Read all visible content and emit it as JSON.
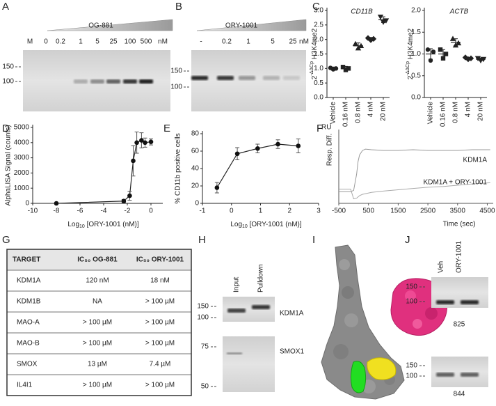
{
  "panels": [
    "A",
    "B",
    "C",
    "D",
    "E",
    "F",
    "G",
    "H",
    "I",
    "J"
  ],
  "gel_a": {
    "ladder": "M",
    "compound": "OG-881",
    "lanes": [
      "0",
      "0.2",
      "1",
      "5",
      "25",
      "100",
      "500"
    ],
    "unit": "nM",
    "markers": [
      "150",
      "100"
    ]
  },
  "gel_b": {
    "compound": "ORY-1001",
    "lanes": [
      "-",
      "0.2",
      "1",
      "5",
      "25"
    ],
    "unit": "nM",
    "markers": [
      "150",
      "100"
    ]
  },
  "chart_data": [
    {
      "type": "strip",
      "title": "CD11B",
      "ylabel": {
        "text": "2",
        "sup": "-ΔΔCp",
        "after": " H3K4me2"
      },
      "categories": [
        "Vehicle",
        "0.16 nM",
        "0.8 nM",
        "4 nM",
        "20 nM"
      ],
      "values": [
        [
          1.02,
          0.97,
          1.0
        ],
        [
          1.05,
          0.95,
          1.0
        ],
        [
          1.85,
          1.7,
          1.78
        ],
        [
          2.05,
          1.98,
          2.02
        ],
        [
          2.78,
          2.6,
          2.65
        ]
      ],
      "means": [
        1.0,
        1.0,
        1.78,
        2.02,
        2.68
      ],
      "errors": [
        0.05,
        0.07,
        0.1,
        0.05,
        0.1
      ],
      "ylim": [
        0,
        3
      ],
      "yticks": [
        {
          "value": 0,
          "label": "0.0"
        },
        {
          "value": 0.5,
          "label": "0.5"
        },
        {
          "value": 1,
          "label": "1.0"
        },
        {
          "value": 1.5,
          "label": "1.5"
        },
        {
          "value": 2,
          "label": "2.0"
        },
        {
          "value": 2.5,
          "label": "2.5"
        },
        {
          "value": 3,
          "label": "3.0"
        }
      ],
      "color": "#222222"
    },
    {
      "type": "strip",
      "title": "ACTB",
      "ylabel": {
        "text": "2",
        "sup": "-ΔΔCp",
        "after": " H3K4me2"
      },
      "categories": [
        "Vehicle",
        "0.16 nM",
        "0.8 nM",
        "4 nM",
        "20 nM"
      ],
      "values": [
        [
          1.1,
          0.85,
          1.05
        ],
        [
          1.1,
          0.9,
          1.0
        ],
        [
          1.35,
          1.2,
          1.25
        ],
        [
          0.92,
          0.88,
          0.9
        ],
        [
          0.9,
          0.85,
          0.88
        ]
      ],
      "means": [
        1.0,
        1.0,
        1.27,
        0.9,
        0.88
      ],
      "errors": [
        0.12,
        0.1,
        0.08,
        0.02,
        0.03
      ],
      "ylim": [
        0,
        2
      ],
      "yticks": [
        {
          "value": 0,
          "label": "0.0"
        },
        {
          "value": 0.5,
          "label": "0.5"
        },
        {
          "value": 1,
          "label": "1.0"
        },
        {
          "value": 1.5,
          "label": "1.5"
        },
        {
          "value": 2,
          "label": "2.0"
        }
      ],
      "color": "#222222"
    },
    {
      "type": "scatter",
      "ylabel": "AlphaLISA  Signal (counts)",
      "xlabel": {
        "text": "Log",
        "sub": "10",
        "after": " [ORY-1001 (nM)]"
      },
      "x": [
        -8,
        -2.3,
        -1.8,
        -1.5,
        -1.2,
        -0.8,
        -0.5,
        0
      ],
      "values": [
        0,
        150,
        500,
        2800,
        4000,
        4150,
        4000,
        4050
      ],
      "errors": [
        30,
        100,
        300,
        1000,
        700,
        500,
        300,
        200
      ],
      "xlim": [
        -10,
        1
      ],
      "xticks": [
        -10,
        -8,
        -6,
        -4,
        -2,
        0
      ],
      "ylim": [
        0,
        5000
      ],
      "yticks": [
        0,
        1000,
        2000,
        3000,
        4000,
        5000
      ],
      "color": "#111111"
    },
    {
      "type": "scatter",
      "ylabel": "% CD11b positive cells",
      "xlabel": {
        "text": "Log",
        "sub": "10",
        "after": " [ORY-1001 (nM)]"
      },
      "x": [
        -0.5,
        0.2,
        0.9,
        1.6,
        2.3
      ],
      "values": [
        18,
        57,
        63,
        68,
        66
      ],
      "errors": [
        6,
        7,
        5,
        5,
        8
      ],
      "xlim": [
        -1,
        3
      ],
      "xticks": [
        -1,
        0,
        1,
        2,
        3
      ],
      "ylim": [
        0,
        80
      ],
      "yticks": [
        0,
        20,
        40,
        60,
        80
      ],
      "color": "#111111"
    },
    {
      "type": "line",
      "unit_label": "RU",
      "ylabel": "Resp. Diff.",
      "xlabel": "Time (sec)",
      "x": [
        -480,
        -100,
        0,
        100,
        150,
        200,
        300,
        400,
        600,
        1000,
        1500,
        2000,
        2500,
        3000,
        3500,
        4000,
        4600
      ],
      "series": [
        {
          "name": "KDM1A",
          "color": "#999999",
          "values": [
            8,
            8,
            10,
            35,
            55,
            65,
            72,
            74,
            73,
            72,
            72,
            73,
            72,
            72,
            72,
            73,
            73
          ]
        },
        {
          "name": "KDM1A + ORY-1001",
          "color": "#aaaaaa",
          "values": [
            12,
            12,
            -3,
            -2,
            0,
            2,
            4,
            5,
            7,
            9,
            11,
            13,
            15,
            16,
            18,
            20,
            22
          ]
        }
      ],
      "xlim": [
        -500,
        4700
      ],
      "xticks": [
        -500,
        500,
        1500,
        2500,
        3500,
        4500
      ],
      "ylim": [
        -10,
        100
      ]
    }
  ],
  "table": {
    "header": [
      "TARGET",
      "IC₅₀ OG-881",
      "IC₅₀ ORY-1001"
    ],
    "rows": [
      [
        "KDM1A",
        "120 nM",
        "18 nM"
      ],
      [
        "KDM1B",
        "NA",
        "> 100 µM"
      ],
      [
        "MAO-A",
        "> 100 µM",
        "> 100 µM"
      ],
      [
        "MAO-B",
        "> 100 µM",
        "> 100 µM"
      ],
      [
        "SMOX",
        "13 µM",
        "7.4 µM"
      ],
      [
        "IL4I1",
        "> 100 µM",
        "> 100 µM"
      ]
    ]
  },
  "gel_h": {
    "columns": [
      "Input",
      "Pulldown"
    ],
    "markers_top": [
      "150",
      "100"
    ],
    "markers_bottom": [
      "75",
      "50"
    ],
    "labels": [
      "KDM1A",
      "SMOX1"
    ]
  },
  "gel_j": {
    "columns": [
      "Veh",
      "ORY-1001"
    ],
    "markers": [
      "150",
      "100"
    ],
    "labels": [
      "825",
      "844"
    ]
  }
}
